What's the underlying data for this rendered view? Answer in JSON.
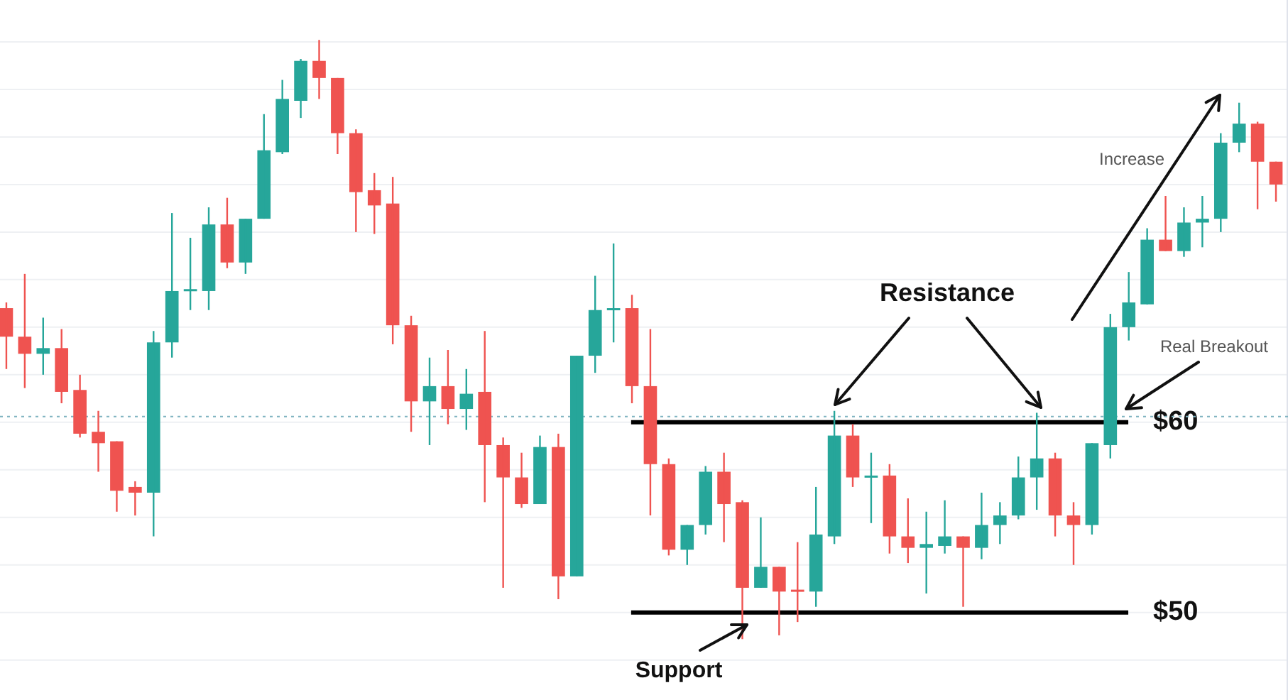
{
  "chart_data": {
    "type": "candlestick",
    "categories": [
      null,
      null,
      null,
      null,
      null,
      null,
      null,
      null,
      null,
      null,
      null,
      null,
      null,
      null,
      null,
      null,
      null,
      null,
      null,
      null,
      null,
      null,
      null,
      null,
      null,
      null,
      null,
      null,
      null,
      null,
      null,
      null,
      null,
      null,
      null,
      null,
      null,
      null,
      null,
      null,
      null,
      null,
      null,
      null,
      null,
      null,
      null,
      null,
      null,
      null,
      null,
      null,
      null,
      null,
      null,
      null,
      null,
      null,
      null,
      null,
      null,
      null,
      null,
      null,
      null,
      null,
      null,
      null,
      null,
      null
    ],
    "ohlc": [
      [
        66.0,
        66.3,
        62.8,
        64.5
      ],
      [
        64.5,
        67.8,
        61.8,
        63.6
      ],
      [
        63.6,
        65.5,
        62.5,
        63.9
      ],
      [
        63.9,
        64.9,
        61.0,
        61.6
      ],
      [
        61.7,
        62.5,
        59.2,
        59.4
      ],
      [
        59.5,
        60.6,
        57.4,
        58.9
      ],
      [
        59.0,
        59.0,
        55.3,
        56.4
      ],
      [
        56.6,
        56.9,
        55.1,
        56.3
      ],
      [
        56.3,
        64.8,
        54.0,
        64.2
      ],
      [
        64.2,
        71.0,
        63.4,
        66.9
      ],
      [
        66.9,
        69.7,
        65.9,
        67.0
      ],
      [
        66.9,
        71.3,
        65.9,
        70.4
      ],
      [
        70.4,
        71.8,
        68.1,
        68.4
      ],
      [
        68.4,
        70.7,
        67.8,
        70.7
      ],
      [
        70.7,
        76.2,
        70.7,
        74.3
      ],
      [
        74.2,
        78.0,
        74.1,
        77.0
      ],
      [
        76.9,
        79.1,
        76.0,
        79.0
      ],
      [
        79.0,
        80.1,
        77.0,
        78.1
      ],
      [
        78.1,
        78.1,
        74.1,
        75.2
      ],
      [
        75.2,
        75.4,
        70.0,
        72.1
      ],
      [
        72.2,
        73.1,
        69.9,
        71.4
      ],
      [
        71.5,
        72.9,
        64.1,
        65.1
      ],
      [
        65.1,
        65.6,
        59.5,
        61.1
      ],
      [
        61.1,
        63.4,
        58.8,
        61.9
      ],
      [
        61.9,
        63.8,
        59.9,
        60.7
      ],
      [
        60.7,
        62.8,
        59.6,
        61.5
      ],
      [
        61.6,
        64.8,
        55.8,
        58.8
      ],
      [
        58.8,
        59.2,
        51.3,
        57.1
      ],
      [
        57.1,
        58.4,
        55.5,
        55.7
      ],
      [
        55.7,
        59.3,
        55.7,
        58.7
      ],
      [
        58.7,
        59.4,
        50.7,
        51.9
      ],
      [
        51.9,
        63.5,
        51.9,
        63.5
      ],
      [
        63.5,
        67.7,
        62.6,
        65.9
      ],
      [
        65.9,
        69.4,
        64.2,
        66.0
      ],
      [
        66.0,
        66.7,
        61.0,
        61.9
      ],
      [
        61.9,
        64.9,
        55.1,
        57.8
      ],
      [
        57.8,
        58.1,
        53.0,
        53.3
      ],
      [
        53.3,
        54.6,
        52.5,
        54.6
      ],
      [
        54.6,
        57.7,
        54.1,
        57.4
      ],
      [
        57.4,
        58.4,
        53.7,
        55.7
      ],
      [
        55.8,
        55.9,
        48.6,
        51.3
      ],
      [
        51.3,
        55.0,
        51.3,
        52.4
      ],
      [
        52.4,
        52.4,
        48.8,
        51.1
      ],
      [
        51.2,
        53.7,
        49.5,
        51.1
      ],
      [
        51.1,
        56.6,
        50.3,
        54.1
      ],
      [
        54.0,
        60.6,
        53.6,
        59.3
      ],
      [
        59.3,
        59.9,
        56.6,
        57.1
      ],
      [
        57.1,
        58.4,
        54.7,
        57.2
      ],
      [
        57.2,
        57.8,
        53.1,
        54.0
      ],
      [
        54.0,
        56.0,
        52.6,
        53.4
      ],
      [
        53.4,
        55.3,
        51.0,
        53.6
      ],
      [
        53.5,
        55.9,
        53.1,
        54.0
      ],
      [
        54.0,
        54.0,
        50.3,
        53.4
      ],
      [
        53.4,
        56.3,
        52.8,
        54.6
      ],
      [
        54.6,
        55.8,
        53.6,
        55.1
      ],
      [
        55.1,
        58.2,
        54.9,
        57.1
      ],
      [
        57.1,
        60.5,
        55.4,
        58.1
      ],
      [
        58.1,
        58.4,
        54.0,
        55.1
      ],
      [
        55.1,
        55.8,
        52.5,
        54.6
      ],
      [
        54.6,
        58.9,
        54.1,
        58.9
      ],
      [
        58.8,
        65.7,
        58.1,
        65.0
      ],
      [
        65.0,
        67.9,
        64.3,
        66.3
      ],
      [
        66.2,
        70.2,
        66.2,
        69.6
      ],
      [
        69.6,
        71.9,
        69.0,
        69.0
      ],
      [
        69.0,
        71.3,
        68.7,
        70.5
      ],
      [
        70.5,
        71.9,
        69.2,
        70.7
      ],
      [
        70.7,
        75.2,
        70.0,
        74.7
      ],
      [
        74.7,
        76.8,
        74.2,
        75.7
      ],
      [
        75.7,
        75.8,
        71.2,
        73.7
      ],
      [
        73.7,
        73.7,
        71.6,
        72.5
      ]
    ],
    "colors": [
      "#ef5350",
      "#ef5350",
      "#26a69a",
      "#ef5350",
      "#ef5350",
      "#ef5350",
      "#ef5350",
      "#ef5350",
      "#26a69a",
      "#26a69a",
      "#26a69a",
      "#26a69a",
      "#ef5350",
      "#26a69a",
      "#26a69a",
      "#26a69a",
      "#26a69a",
      "#ef5350",
      "#ef5350",
      "#ef5350",
      "#ef5350",
      "#ef5350",
      "#ef5350",
      "#26a69a",
      "#ef5350",
      "#26a69a",
      "#ef5350",
      "#ef5350",
      "#ef5350",
      "#26a69a",
      "#ef5350",
      "#26a69a",
      "#26a69a",
      "#26a69a",
      "#ef5350",
      "#ef5350",
      "#ef5350",
      "#26a69a",
      "#26a69a",
      "#ef5350",
      "#ef5350",
      "#26a69a",
      "#ef5350",
      "#ef5350",
      "#26a69a",
      "#26a69a",
      "#ef5350",
      "#26a69a",
      "#ef5350",
      "#ef5350",
      "#26a69a",
      "#26a69a",
      "#ef5350",
      "#26a69a",
      "#26a69a",
      "#26a69a",
      "#26a69a",
      "#ef5350",
      "#ef5350",
      "#26a69a",
      "#26a69a",
      "#26a69a",
      "#26a69a",
      "#ef5350",
      "#26a69a",
      "#26a69a",
      "#26a69a",
      "#26a69a",
      "#ef5350",
      "#ef5350"
    ],
    "ylim": [
      45.4,
      82.2
    ],
    "yticks": [
      {
        "value": 47.5,
        "label": null
      },
      {
        "value": 50,
        "label": "$50"
      },
      {
        "value": 52.5,
        "label": null
      },
      {
        "value": 55,
        "label": null
      },
      {
        "value": 57.5,
        "label": null
      },
      {
        "value": 60,
        "label": "$60"
      },
      {
        "value": 62.5,
        "label": null
      },
      {
        "value": 65,
        "label": null
      },
      {
        "value": 67.5,
        "label": null
      },
      {
        "value": 70,
        "label": null
      },
      {
        "value": 72.5,
        "label": null
      },
      {
        "value": 75,
        "label": null
      },
      {
        "value": 77.5,
        "label": null
      },
      {
        "value": 80,
        "label": null
      }
    ],
    "grid": "y",
    "ref_lines": [
      {
        "axis": "y",
        "value": 60,
        "color": "#000000",
        "line_style": "solid"
      },
      {
        "axis": "y",
        "value": 50,
        "color": "#000000",
        "line_style": "solid"
      },
      {
        "axis": "y",
        "value": 60.3,
        "color": "#7fb3c0",
        "line_style": "dotted"
      }
    ],
    "annotations": [
      "Resistance",
      "Support",
      "Increase",
      "Real Breakout"
    ]
  }
}
